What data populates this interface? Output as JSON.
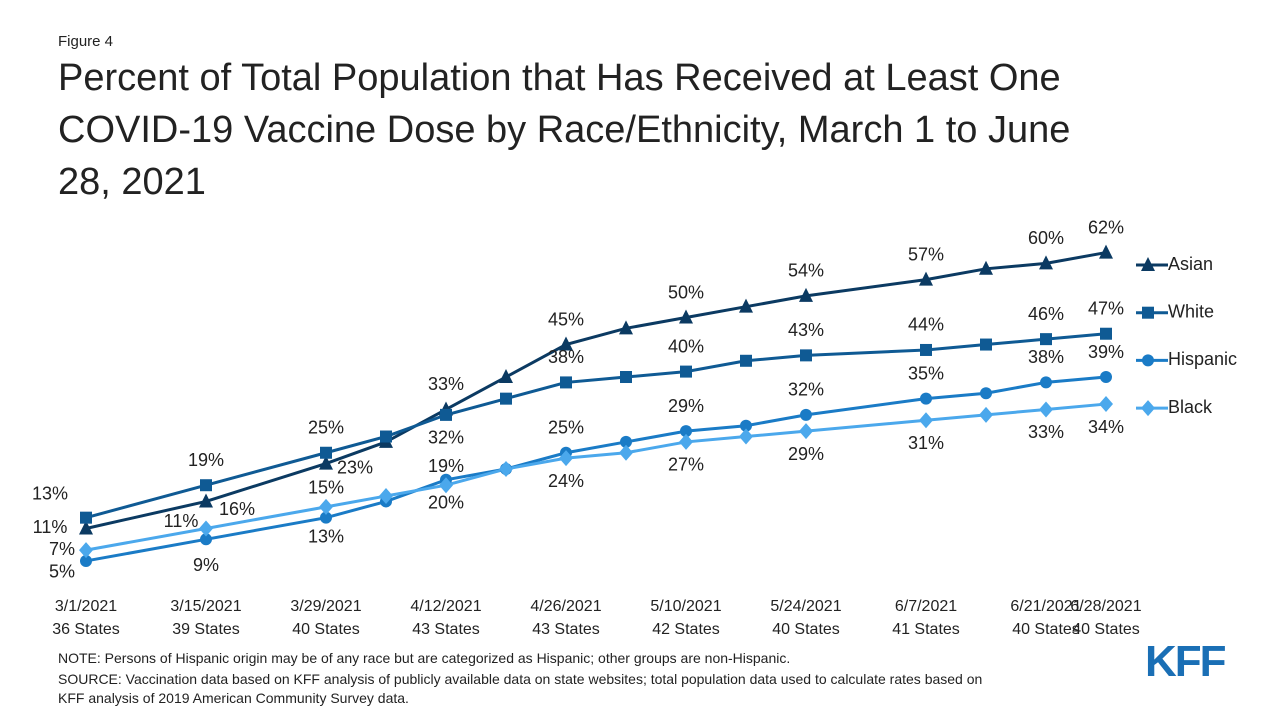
{
  "figure_label": "Figure 4",
  "notes": [
    "NOTE: Persons of Hispanic origin may be of any race but are categorized as Hispanic; other groups are non-Hispanic.",
    "SOURCE: Vaccination data based on KFF analysis of publicly available data on state websites; total population data used to calculate rates based on",
    "KFF analysis of 2019 American Community Survey data."
  ],
  "logo": "KFF",
  "chart_data": {
    "type": "line",
    "title": [
      "Percent of Total Population that Has Received at Least One",
      "COVID-19 Vaccine Dose by Race/Ethnicity, March 1 to June",
      "28, 2021"
    ],
    "categories": [
      "3/1/2021",
      "3/15/2021",
      "3/29/2021",
      null,
      "4/12/2021",
      null,
      "4/26/2021",
      null,
      "5/10/2021",
      null,
      "5/24/2021",
      "6/7/2021",
      null,
      "6/21/2021",
      "6/28/2021"
    ],
    "category_sublabels": [
      "36 States",
      "39 States",
      "40 States",
      null,
      "43 States",
      null,
      "43 States",
      null,
      "42 States",
      null,
      "40 States",
      "41 States",
      null,
      "40 States",
      "40 States"
    ],
    "series": [
      {
        "name": "Asian",
        "color": "#0b3a62",
        "marker": "triangle",
        "values": [
          11,
          16,
          23,
          27,
          33,
          39,
          45,
          48,
          50,
          52,
          54,
          57,
          59,
          60,
          62
        ],
        "value_labels": [
          "11%",
          "16%",
          "23%",
          null,
          "33%",
          null,
          "45%",
          null,
          "50%",
          null,
          "54%",
          "57%",
          null,
          "60%",
          "62%"
        ]
      },
      {
        "name": "White",
        "color": "#0f5a94",
        "marker": "square",
        "values": [
          13,
          19,
          25,
          28,
          32,
          35,
          38,
          39,
          40,
          42,
          43,
          44,
          45,
          46,
          47
        ],
        "value_labels": [
          "13%",
          "19%",
          "25%",
          null,
          "32%",
          null,
          "38%",
          null,
          "40%",
          null,
          "43%",
          "44%",
          null,
          "46%",
          "47%"
        ]
      },
      {
        "name": "Hispanic",
        "color": "#1a7bc6",
        "marker": "circle",
        "values": [
          5,
          9,
          13,
          16,
          20,
          22,
          25,
          27,
          29,
          30,
          32,
          35,
          36,
          38,
          39
        ],
        "value_labels": [
          "5%",
          "9%",
          "13%",
          null,
          "20%",
          null,
          "25%",
          null,
          "29%",
          null,
          "32%",
          "35%",
          null,
          "38%",
          "39%"
        ]
      },
      {
        "name": "Black",
        "color": "#4ba8ec",
        "marker": "diamond",
        "values": [
          7,
          11,
          15,
          17,
          19,
          22,
          24,
          25,
          27,
          28,
          29,
          31,
          32,
          33,
          34
        ],
        "value_labels": [
          "7%",
          "11%",
          "15%",
          null,
          "19%",
          null,
          "24%",
          null,
          "27%",
          null,
          "29%",
          "31%",
          null,
          "33%",
          "34%"
        ]
      }
    ]
  }
}
